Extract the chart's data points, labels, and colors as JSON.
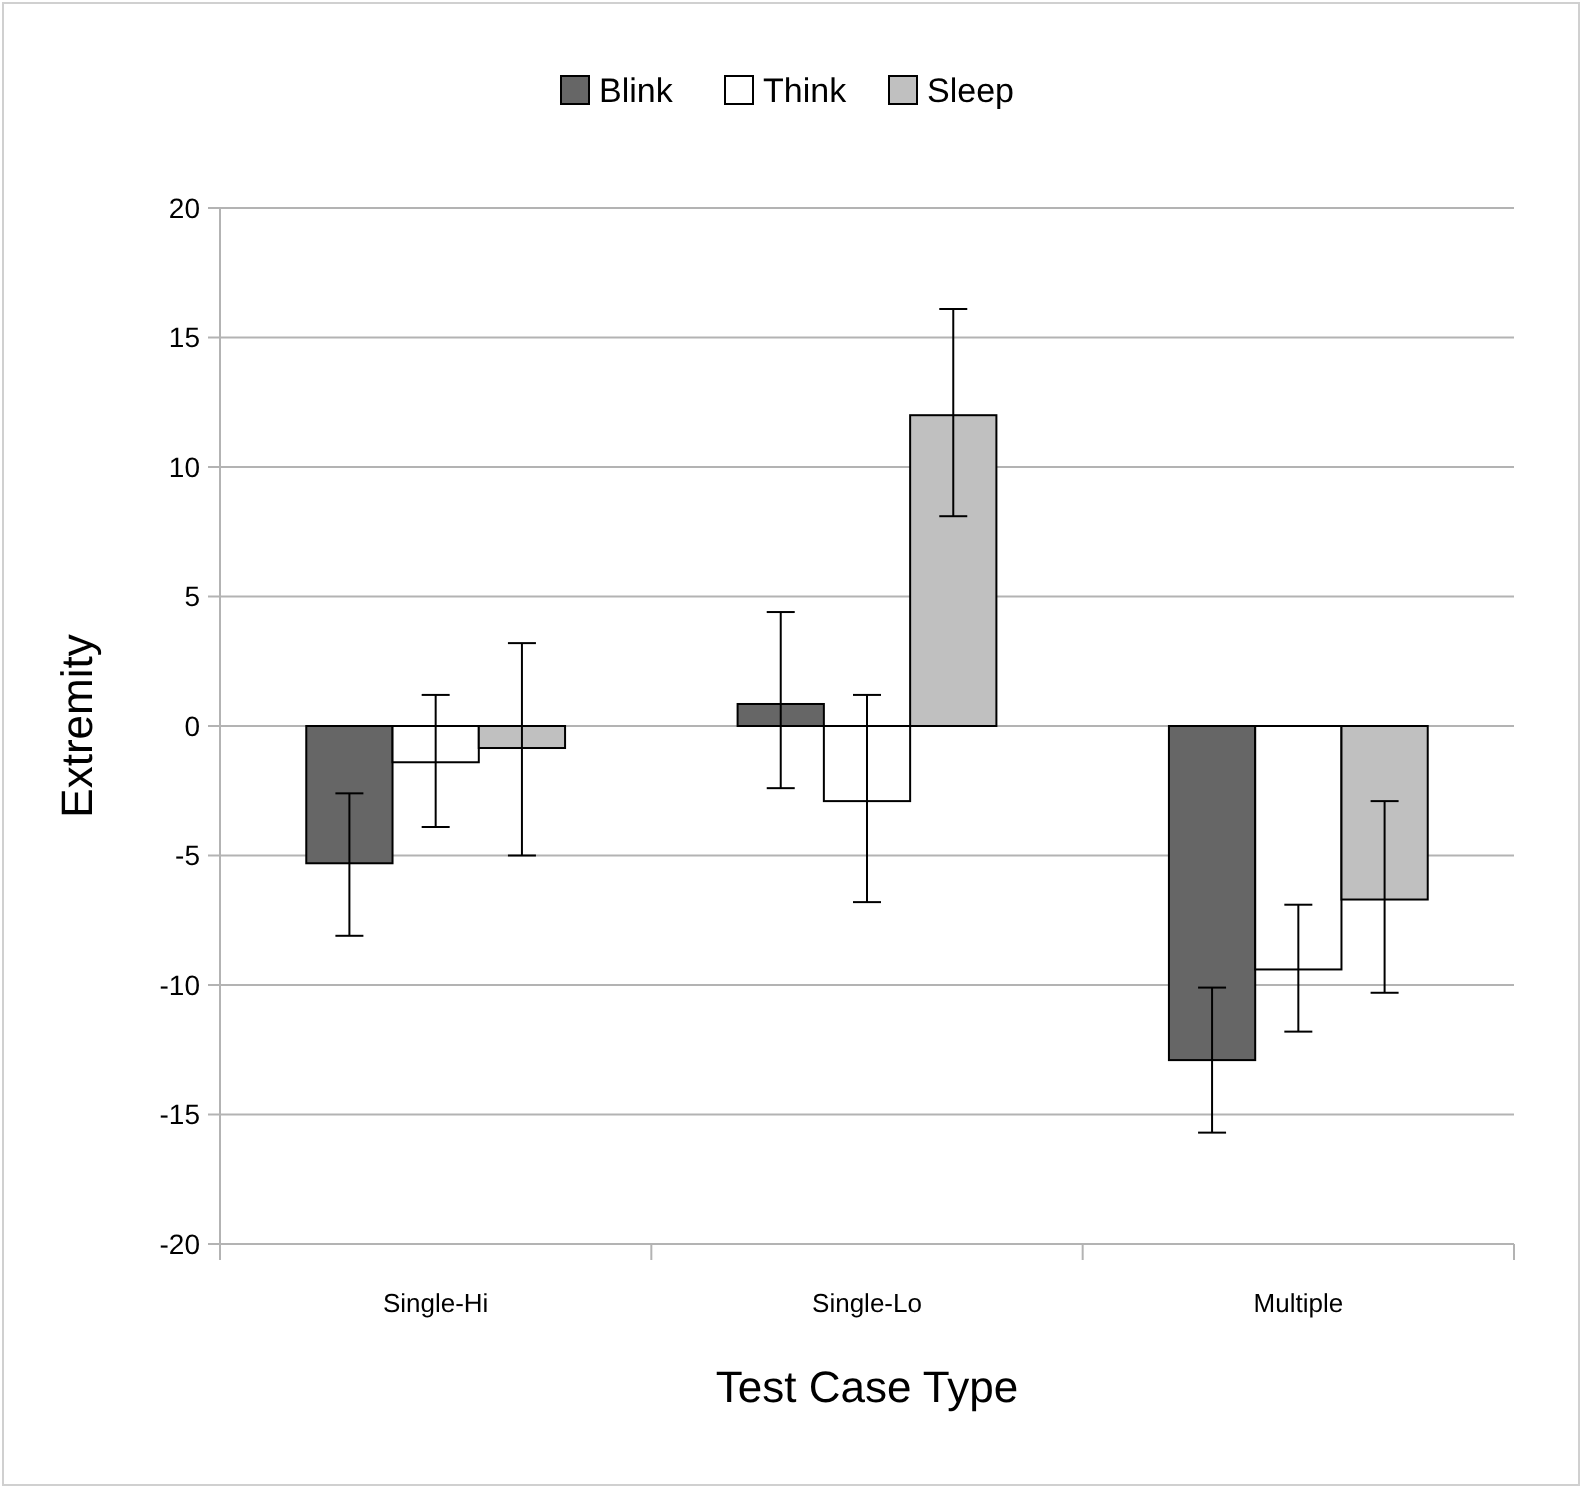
{
  "chart_data": {
    "type": "bar",
    "xlabel": "Test Case Type",
    "ylabel": "Extremity",
    "categories": [
      "Single-Hi",
      "Single-Lo",
      "Multiple"
    ],
    "series": [
      {
        "name": "Blink",
        "color": "#666666",
        "values": [
          -5.3,
          0.85,
          -12.9
        ],
        "errors": [
          [
            -8.1,
            -2.6
          ],
          [
            -2.4,
            4.4
          ],
          [
            -15.7,
            -10.1
          ]
        ]
      },
      {
        "name": "Think",
        "color": "#ffffff",
        "values": [
          -1.4,
          -2.9,
          -9.4
        ],
        "errors": [
          [
            -3.9,
            1.2
          ],
          [
            -6.8,
            1.2
          ],
          [
            -11.8,
            -6.9
          ]
        ]
      },
      {
        "name": "Sleep",
        "color": "#c0c0c0",
        "values": [
          -0.85,
          12.0,
          -6.7
        ],
        "errors": [
          [
            -5.0,
            3.2
          ],
          [
            8.1,
            16.1
          ],
          [
            -10.3,
            -2.9
          ]
        ]
      }
    ],
    "ylim": [
      -20,
      20
    ],
    "yticks": [
      -20,
      -15,
      -10,
      -5,
      0,
      5,
      10,
      15,
      20
    ],
    "grid": "y",
    "legend": "top"
  }
}
